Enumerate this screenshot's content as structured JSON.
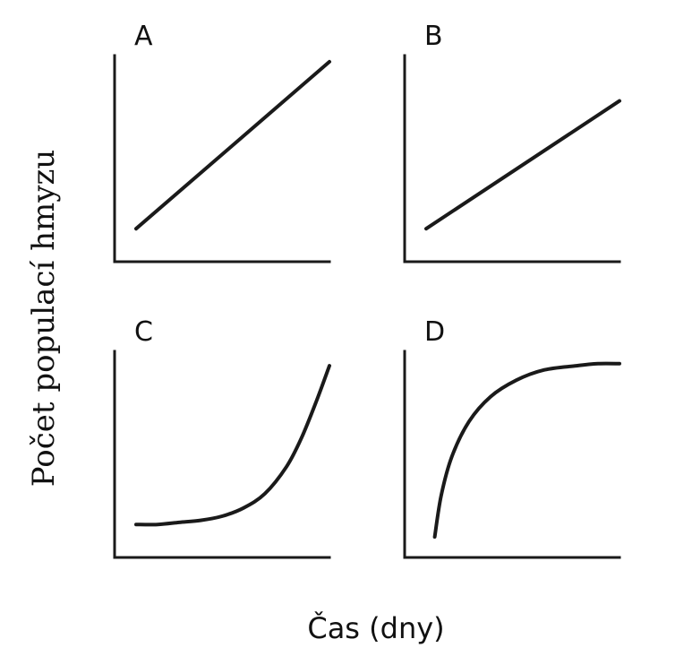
{
  "figure": {
    "ylabel": "Počet populací hmyzu",
    "xlabel": "Čas (dny)"
  },
  "chart_data": [
    {
      "type": "line",
      "panel": "A",
      "title": "A",
      "xlim": [
        0,
        10
      ],
      "ylim": [
        0,
        10
      ],
      "grid": false,
      "series": [
        {
          "x": [
            1,
            10
          ],
          "y": [
            1.6,
            9.7
          ]
        }
      ]
    },
    {
      "type": "line",
      "panel": "B",
      "title": "B",
      "xlim": [
        0,
        10
      ],
      "ylim": [
        0,
        10
      ],
      "grid": false,
      "series": [
        {
          "x": [
            1,
            10
          ],
          "y": [
            1.6,
            7.8
          ]
        }
      ]
    },
    {
      "type": "line",
      "panel": "C",
      "title": "C",
      "xlim": [
        0,
        10
      ],
      "ylim": [
        0,
        10
      ],
      "grid": false,
      "series": [
        {
          "x": [
            1,
            2,
            3,
            4,
            5,
            6,
            7,
            8,
            8.7,
            9.4,
            10
          ],
          "y": [
            1.6,
            1.6,
            1.7,
            1.8,
            2.0,
            2.4,
            3.1,
            4.4,
            5.8,
            7.6,
            9.3
          ]
        }
      ]
    },
    {
      "type": "line",
      "panel": "D",
      "title": "D",
      "xlim": [
        0,
        10
      ],
      "ylim": [
        0,
        10
      ],
      "grid": false,
      "series": [
        {
          "x": [
            1.4,
            1.7,
            2.2,
            3.0,
            4.0,
            5.2,
            6.5,
            8.0,
            9.0,
            10.0
          ],
          "y": [
            1.0,
            3.0,
            4.9,
            6.6,
            7.8,
            8.6,
            9.1,
            9.3,
            9.4,
            9.4
          ]
        }
      ]
    }
  ]
}
